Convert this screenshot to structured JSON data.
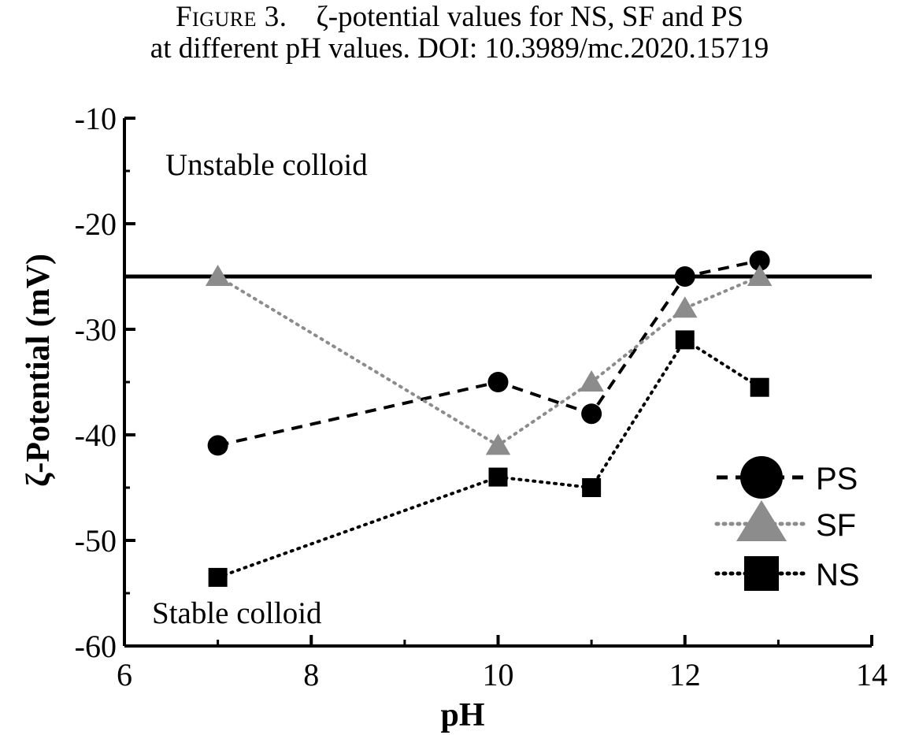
{
  "caption": {
    "label": "Figure 3.",
    "text": "ζ-potential values for NS, SF and PS",
    "line2": "at different pH values. DOI: 10.3989/mc.2020.15719"
  },
  "chart_data": {
    "type": "line",
    "xlabel": "pH",
    "ylabel": "ζ-Potential (mV)",
    "xlim": [
      6,
      14
    ],
    "ylim": [
      -60,
      -10
    ],
    "xticks": [
      "6",
      "8",
      "10",
      "12",
      "14"
    ],
    "yticks": [
      "-10",
      "-20",
      "-30",
      "-40",
      "-50",
      "-60"
    ],
    "threshold": -25,
    "annotations": {
      "upper": "Unstable colloid",
      "lower": "Stable colloid"
    },
    "legend_position": "bottom-right",
    "series": [
      {
        "name": "PS",
        "marker": "circle",
        "line": "dashed",
        "color": "#000000",
        "x": [
          7,
          10,
          11,
          12,
          12.8
        ],
        "y": [
          -41,
          -35,
          -38,
          -25,
          -23.5
        ]
      },
      {
        "name": "SF",
        "marker": "triangle",
        "line": "dotted",
        "color": "#8c8c8c",
        "x": [
          7,
          10,
          11,
          12,
          12.8
        ],
        "y": [
          -25,
          -41,
          -35,
          -28,
          -25
        ]
      },
      {
        "name": "NS",
        "marker": "square",
        "line": "dotted",
        "color": "#000000",
        "x": [
          7,
          10,
          11,
          12,
          12.8
        ],
        "y": [
          -53.5,
          -44,
          -45,
          -31,
          -35.5
        ]
      }
    ]
  }
}
